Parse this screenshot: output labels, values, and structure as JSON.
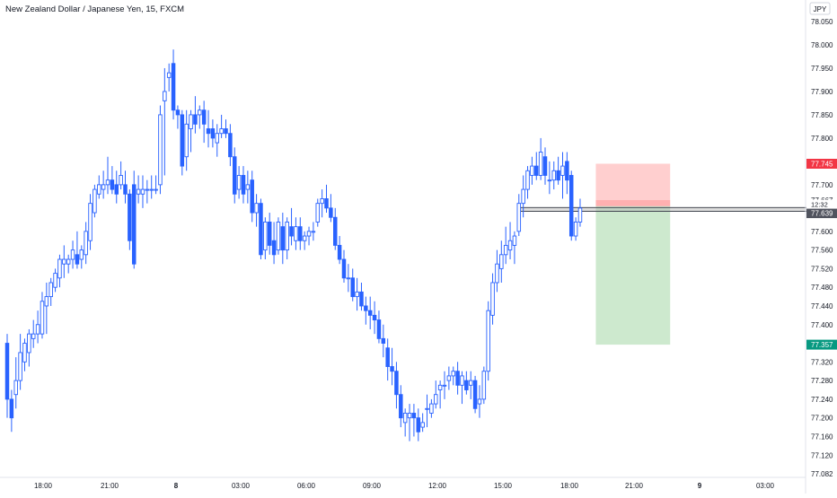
{
  "header": {
    "title": "New Zealand Dollar / Japanese Yen, 15, FXCM"
  },
  "currency_label": "JPY",
  "chart_data": {
    "type": "candlestick",
    "title": "New Zealand Dollar / Japanese Yen, 15, FXCM",
    "price_axis": {
      "min": 77.06,
      "max": 78.09,
      "ticks": [
        78.05,
        78.0,
        77.95,
        77.9,
        77.85,
        77.8,
        77.75,
        77.7,
        77.6,
        77.56,
        77.52,
        77.48,
        77.44,
        77.4,
        77.36,
        77.32,
        77.28,
        77.24,
        77.2,
        77.16,
        77.12,
        77.08
      ],
      "tick_labels": [
        "78.050",
        "78.000",
        "77.950",
        "77.900",
        "77.850",
        "77.800",
        "77.750",
        "77.700",
        "77.600",
        "77.560",
        "77.520",
        "77.480",
        "77.440",
        "77.400",
        "77.360",
        "77.320",
        "77.280",
        "77.240",
        "77.200",
        "77.160",
        "77.120",
        "77.082"
      ]
    },
    "time_axis": {
      "labels": [
        "18:00",
        "21:00",
        "8",
        "03:00",
        "06:00",
        "09:00",
        "12:00",
        "15:00",
        "18:00",
        "21:00",
        "9",
        "03:00"
      ],
      "bar_interval_minutes": 15,
      "first_bar_time": "17:00",
      "last_bar_time": "17:15"
    },
    "grid": false,
    "candles": [
      [
        77.36,
        77.38,
        77.2,
        77.24
      ],
      [
        77.24,
        77.26,
        77.17,
        77.2
      ],
      [
        77.25,
        77.33,
        77.22,
        77.28
      ],
      [
        77.28,
        77.38,
        77.26,
        77.34
      ],
      [
        77.32,
        77.37,
        77.3,
        77.36
      ],
      [
        77.34,
        77.39,
        77.31,
        77.38
      ],
      [
        77.37,
        77.41,
        77.35,
        77.38
      ],
      [
        77.38,
        77.43,
        77.36,
        77.4
      ],
      [
        77.38,
        77.47,
        77.37,
        77.45
      ],
      [
        77.44,
        77.49,
        77.38,
        77.46
      ],
      [
        77.46,
        77.5,
        77.44,
        77.49
      ],
      [
        77.48,
        77.52,
        77.47,
        77.51
      ],
      [
        77.5,
        77.55,
        77.48,
        77.54
      ],
      [
        77.53,
        77.57,
        77.5,
        77.54
      ],
      [
        77.53,
        77.55,
        77.51,
        77.54
      ],
      [
        77.54,
        77.58,
        77.52,
        77.56
      ],
      [
        77.55,
        77.6,
        77.52,
        77.53
      ],
      [
        77.54,
        77.57,
        77.52,
        77.56
      ],
      [
        77.55,
        77.62,
        77.53,
        77.6
      ],
      [
        77.58,
        77.68,
        77.56,
        77.66
      ],
      [
        77.64,
        77.7,
        77.63,
        77.69
      ],
      [
        77.68,
        77.72,
        77.67,
        77.7
      ],
      [
        77.69,
        77.73,
        77.67,
        77.7
      ],
      [
        77.7,
        77.76,
        77.68,
        77.71
      ],
      [
        77.71,
        77.74,
        77.68,
        77.69
      ],
      [
        77.7,
        77.73,
        77.66,
        77.68
      ],
      [
        77.7,
        77.75,
        77.69,
        77.72
      ],
      [
        77.7,
        77.73,
        77.66,
        77.68
      ],
      [
        77.68,
        77.69,
        77.56,
        77.58
      ],
      [
        77.7,
        77.73,
        77.52,
        77.53
      ],
      [
        77.68,
        77.72,
        77.66,
        77.69
      ],
      [
        77.68,
        77.72,
        77.65,
        77.69
      ],
      [
        77.69,
        77.71,
        77.66,
        77.69
      ],
      [
        77.69,
        77.72,
        77.67,
        77.69
      ],
      [
        77.69,
        77.72,
        77.68,
        77.69
      ],
      [
        77.7,
        77.87,
        77.68,
        77.85
      ],
      [
        77.88,
        77.95,
        77.72,
        77.9
      ],
      [
        77.93,
        77.96,
        77.9,
        77.94
      ],
      [
        77.96,
        77.99,
        77.84,
        77.86
      ],
      [
        77.86,
        77.87,
        77.82,
        77.85
      ],
      [
        77.85,
        77.86,
        77.72,
        77.74
      ],
      [
        77.76,
        77.86,
        77.73,
        77.83
      ],
      [
        77.82,
        77.86,
        77.77,
        77.85
      ],
      [
        77.85,
        77.89,
        77.81,
        77.83
      ],
      [
        77.85,
        77.87,
        77.82,
        77.86
      ],
      [
        77.86,
        77.88,
        77.79,
        77.83
      ],
      [
        77.82,
        77.86,
        77.78,
        77.81
      ],
      [
        77.82,
        77.84,
        77.78,
        77.8
      ],
      [
        77.79,
        77.83,
        77.76,
        77.81
      ],
      [
        77.81,
        77.85,
        77.8,
        77.82
      ],
      [
        77.82,
        77.84,
        77.8,
        77.81
      ],
      [
        77.81,
        77.83,
        77.74,
        77.76
      ],
      [
        77.76,
        77.78,
        77.66,
        77.68
      ],
      [
        77.69,
        77.74,
        77.67,
        77.72
      ],
      [
        77.72,
        77.74,
        77.66,
        77.68
      ],
      [
        77.69,
        77.73,
        77.66,
        77.7
      ],
      [
        77.71,
        77.73,
        77.62,
        77.64
      ],
      [
        77.64,
        77.68,
        77.61,
        77.66
      ],
      [
        77.66,
        77.67,
        77.54,
        77.55
      ],
      [
        77.56,
        77.63,
        77.54,
        77.62
      ],
      [
        77.62,
        77.64,
        77.55,
        77.57
      ],
      [
        77.58,
        77.62,
        77.53,
        77.55
      ],
      [
        77.56,
        77.63,
        77.55,
        77.62
      ],
      [
        77.61,
        77.64,
        77.53,
        77.56
      ],
      [
        77.56,
        77.63,
        77.54,
        77.62
      ],
      [
        77.61,
        77.65,
        77.57,
        77.59
      ],
      [
        77.58,
        77.63,
        77.56,
        77.61
      ],
      [
        77.61,
        77.63,
        77.56,
        77.58
      ],
      [
        77.58,
        77.6,
        77.56,
        77.59
      ],
      [
        77.59,
        77.61,
        77.57,
        77.6
      ],
      [
        77.6,
        77.62,
        77.58,
        77.6
      ],
      [
        77.62,
        77.67,
        77.61,
        77.66
      ],
      [
        77.66,
        77.69,
        77.63,
        77.67
      ],
      [
        77.67,
        77.7,
        77.64,
        77.65
      ],
      [
        77.65,
        77.68,
        77.62,
        77.63
      ],
      [
        77.63,
        77.65,
        77.56,
        77.57
      ],
      [
        77.57,
        77.59,
        77.53,
        77.54
      ],
      [
        77.54,
        77.56,
        77.49,
        77.5
      ],
      [
        77.5,
        77.53,
        77.47,
        77.5
      ],
      [
        77.5,
        77.52,
        77.45,
        77.46
      ],
      [
        77.46,
        77.5,
        77.43,
        77.47
      ],
      [
        77.47,
        77.49,
        77.43,
        77.44
      ],
      [
        77.44,
        77.46,
        77.4,
        77.43
      ],
      [
        77.43,
        77.46,
        77.39,
        77.42
      ],
      [
        77.42,
        77.45,
        77.38,
        77.41
      ],
      [
        77.41,
        77.43,
        77.36,
        77.37
      ],
      [
        77.37,
        77.4,
        77.33,
        77.36
      ],
      [
        77.35,
        77.37,
        77.28,
        77.31
      ],
      [
        77.31,
        77.35,
        77.27,
        77.3
      ],
      [
        77.3,
        77.32,
        77.22,
        77.25
      ],
      [
        77.25,
        77.27,
        77.18,
        77.2
      ],
      [
        77.19,
        77.22,
        77.16,
        77.21
      ],
      [
        77.2,
        77.23,
        77.15,
        77.21
      ],
      [
        77.21,
        77.23,
        77.16,
        77.2
      ],
      [
        77.2,
        77.22,
        77.15,
        77.17
      ],
      [
        77.18,
        77.21,
        77.17,
        77.19
      ],
      [
        77.22,
        77.25,
        77.18,
        77.22
      ],
      [
        77.21,
        77.24,
        77.2,
        77.23
      ],
      [
        77.23,
        77.28,
        77.22,
        77.25
      ],
      [
        77.26,
        77.28,
        77.22,
        77.27
      ],
      [
        77.27,
        77.3,
        77.24,
        77.27
      ],
      [
        77.28,
        77.31,
        77.26,
        77.29
      ],
      [
        77.29,
        77.31,
        77.27,
        77.3
      ],
      [
        77.3,
        77.32,
        77.25,
        77.27
      ],
      [
        77.27,
        77.3,
        77.23,
        77.29
      ],
      [
        77.28,
        77.3,
        77.25,
        77.26
      ],
      [
        77.27,
        77.3,
        77.24,
        77.28
      ],
      [
        77.28,
        77.29,
        77.21,
        77.22
      ],
      [
        77.23,
        77.27,
        77.2,
        77.24
      ],
      [
        77.24,
        77.31,
        77.23,
        77.3
      ],
      [
        77.3,
        77.45,
        77.28,
        77.43
      ],
      [
        77.42,
        77.51,
        77.4,
        77.49
      ],
      [
        77.49,
        77.56,
        77.47,
        77.53
      ],
      [
        77.52,
        77.58,
        77.49,
        77.55
      ],
      [
        77.55,
        77.61,
        77.53,
        77.57
      ],
      [
        77.56,
        77.62,
        77.54,
        77.58
      ],
      [
        77.57,
        77.6,
        77.53,
        77.59
      ],
      [
        77.6,
        77.68,
        77.59,
        77.66
      ],
      [
        77.66,
        77.72,
        77.63,
        77.69
      ],
      [
        77.69,
        77.74,
        77.67,
        77.73
      ],
      [
        77.72,
        77.76,
        77.7,
        77.74
      ],
      [
        77.74,
        77.77,
        77.71,
        77.72
      ],
      [
        77.72,
        77.8,
        77.71,
        77.77
      ],
      [
        77.76,
        77.78,
        77.7,
        77.72
      ],
      [
        77.71,
        77.75,
        77.68,
        77.71
      ],
      [
        77.71,
        77.75,
        77.69,
        77.73
      ],
      [
        77.73,
        77.76,
        77.7,
        77.71
      ],
      [
        77.72,
        77.77,
        77.67,
        77.74
      ],
      [
        77.75,
        77.77,
        77.68,
        77.71
      ],
      [
        77.72,
        77.73,
        77.58,
        77.59
      ],
      [
        77.59,
        77.63,
        77.58,
        77.62
      ],
      [
        77.62,
        77.67,
        77.61,
        77.65
      ]
    ],
    "position": {
      "type": "short",
      "entry": 77.654,
      "stop_loss": 77.745,
      "take_profit": 77.357,
      "start_bar": 135,
      "end_bar": 152
    },
    "horizontal_zone": {
      "top": 77.651,
      "bottom": 77.643,
      "start_bar": 118,
      "end_bar": 184
    },
    "price_labels": [
      {
        "value": 77.745,
        "text": "77.745",
        "color": "#f23645"
      },
      {
        "value": 77.667,
        "text": "77.667",
        "color": "none"
      },
      {
        "value": 77.639,
        "text": "77.639",
        "sub": "12:32",
        "color": "#50535e"
      },
      {
        "value": 77.357,
        "text": "77.357",
        "color": "#089981"
      }
    ],
    "colors": {
      "up_body": "#ffffff",
      "down_body": "#2962ff",
      "candle_border": "#2962ff",
      "axis_text": "#131722"
    }
  }
}
